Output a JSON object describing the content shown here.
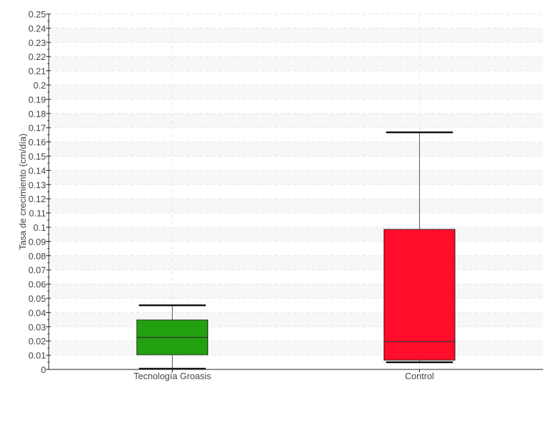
{
  "chart_data": {
    "type": "box",
    "title": "",
    "xlabel": "",
    "ylabel": "Tasa de crecimiento (cm/día)",
    "ylim": [
      0,
      0.25
    ],
    "ytick_step": 0.01,
    "grid": true,
    "categories": [
      "Tecnología Groasis",
      "Control"
    ],
    "series": [
      {
        "category": "Tecnología Groasis",
        "min": 0.0005,
        "q1": 0.0103,
        "median": 0.0225,
        "q3": 0.0348,
        "max": 0.0451,
        "color": "#22a00f"
      },
      {
        "category": "Control",
        "min": 0.005,
        "q1": 0.0065,
        "median": 0.0196,
        "q3": 0.0985,
        "max": 0.1667,
        "color": "#ff0d2b"
      }
    ]
  }
}
